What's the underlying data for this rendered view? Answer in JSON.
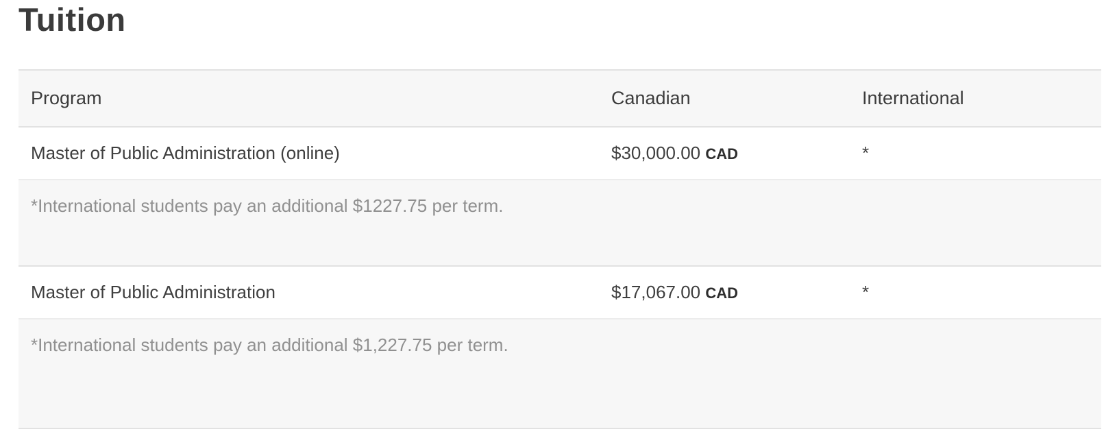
{
  "page": {
    "title": "Tuition"
  },
  "table": {
    "columns": [
      {
        "label": "Program"
      },
      {
        "label": "Canadian"
      },
      {
        "label": "International"
      }
    ],
    "rows": [
      {
        "program": "Master of Public Administration (online)",
        "canadian_amount": "$30,000.00",
        "currency": "CAD",
        "international": "*",
        "note": "*International students pay an additional $1227.75 per term."
      },
      {
        "program": "Master of Public Administration",
        "canadian_amount": "$17,067.00",
        "currency": "CAD",
        "international": "*",
        "note": "*International students pay an additional $1,227.75 per term."
      }
    ],
    "colors": {
      "band_bg": "#f7f7f7",
      "border": "#e2e2e2",
      "title_text": "#3b3b3b",
      "body_text": "#3f3f3f",
      "note_text": "#909090"
    }
  }
}
